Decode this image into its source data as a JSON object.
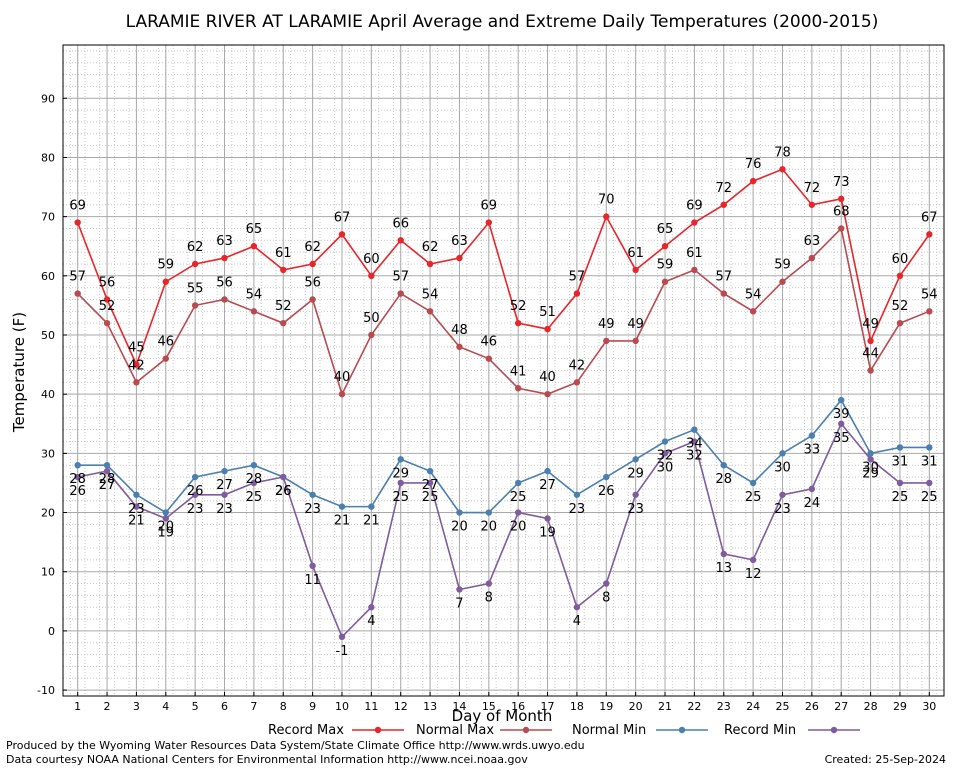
{
  "chart_data": {
    "type": "line",
    "title": "LARAMIE RIVER AT LARAMIE April Average and Extreme Daily Temperatures (2000-2015)",
    "xlabel": "Day of Month",
    "ylabel": "Temperature (F)",
    "ylim": [
      -11,
      99
    ],
    "yticks": [
      -10,
      0,
      10,
      20,
      30,
      40,
      50,
      60,
      70,
      80,
      90
    ],
    "xlim": [
      0.5,
      30.5
    ],
    "x": [
      1,
      2,
      3,
      4,
      5,
      6,
      7,
      8,
      9,
      10,
      11,
      12,
      13,
      14,
      15,
      16,
      17,
      18,
      19,
      20,
      21,
      22,
      23,
      24,
      25,
      26,
      27,
      28,
      29,
      30
    ],
    "grid": true,
    "legend_position": "bottom",
    "series": [
      {
        "name": "Record Max",
        "color": "#e8252a",
        "values": [
          69,
          56,
          45,
          59,
          62,
          63,
          65,
          61,
          62,
          67,
          60,
          66,
          62,
          63,
          69,
          52,
          51,
          57,
          70,
          61,
          65,
          69,
          72,
          76,
          78,
          72,
          73,
          49,
          60,
          67
        ]
      },
      {
        "name": "Normal Max",
        "color": "#b94a4f",
        "values": [
          57,
          52,
          42,
          46,
          55,
          56,
          54,
          52,
          56,
          40,
          50,
          57,
          54,
          48,
          46,
          41,
          40,
          42,
          49,
          49,
          59,
          61,
          57,
          54,
          59,
          63,
          68,
          44,
          52,
          54
        ]
      },
      {
        "name": "Normal Min",
        "color": "#4a7fb0",
        "values": [
          28,
          28,
          23,
          20,
          26,
          27,
          28,
          26,
          23,
          21,
          21,
          29,
          27,
          20,
          20,
          25,
          27,
          23,
          26,
          29,
          32,
          34,
          28,
          25,
          30,
          33,
          39,
          30,
          31,
          31
        ]
      },
      {
        "name": "Record Min",
        "color": "#7f5c9e",
        "values": [
          26,
          27,
          21,
          19,
          23,
          23,
          25,
          26,
          11,
          -1,
          4,
          25,
          25,
          7,
          8,
          20,
          19,
          4,
          8,
          23,
          30,
          32,
          13,
          12,
          23,
          24,
          35,
          29,
          25,
          25
        ]
      }
    ]
  },
  "footer": {
    "produced_by": "Produced by the Wyoming Water Resources Data System/State Climate Office http://www.wrds.uwyo.edu",
    "courtesy": "Data courtesy NOAA National Centers for Environmental Information http://www.ncei.noaa.gov",
    "created": "Created:  25-Sep-2024"
  }
}
